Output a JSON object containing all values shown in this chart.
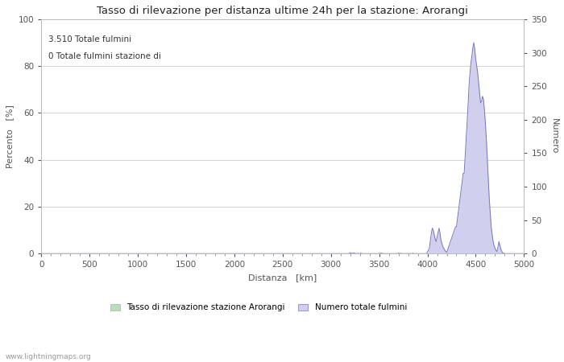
{
  "title": "Tasso di rilevazione per distanza ultime 24h per la stazione: Arorangi",
  "xlabel": "Distanza   [km]",
  "ylabel_left": "Percento   [%]",
  "ylabel_right": "Numero",
  "annotation_line1": "3.510 Totale fulmini",
  "annotation_line2": "0 Totale fulmini stazione di",
  "legend_label1": "Tasso di rilevazione stazione Arorangi",
  "legend_label2": "Numero totale fulmini",
  "watermark": "www.lightningmaps.org",
  "xlim": [
    0,
    5000
  ],
  "ylim_left": [
    0,
    100
  ],
  "ylim_right": [
    0,
    350
  ],
  "xticks": [
    0,
    500,
    1000,
    1500,
    2000,
    2500,
    3000,
    3500,
    4000,
    4500,
    5000
  ],
  "yticks_left": [
    0,
    20,
    40,
    60,
    80,
    100
  ],
  "yticks_right": [
    0,
    50,
    100,
    150,
    200,
    250,
    300,
    350
  ],
  "background_color": "#ffffff",
  "plot_bg_color": "#ffffff",
  "grid_color": "#cccccc",
  "line_color_blue": "#7777bb",
  "fill_color_blue": "#d0d0ee",
  "fill_color_green": "#bbddbb",
  "title_fontsize": 9.5,
  "axis_label_fontsize": 8,
  "tick_fontsize": 7.5,
  "annotation_fontsize": 7.5,
  "legend_fontsize": 7.5,
  "watermark_fontsize": 6.5
}
